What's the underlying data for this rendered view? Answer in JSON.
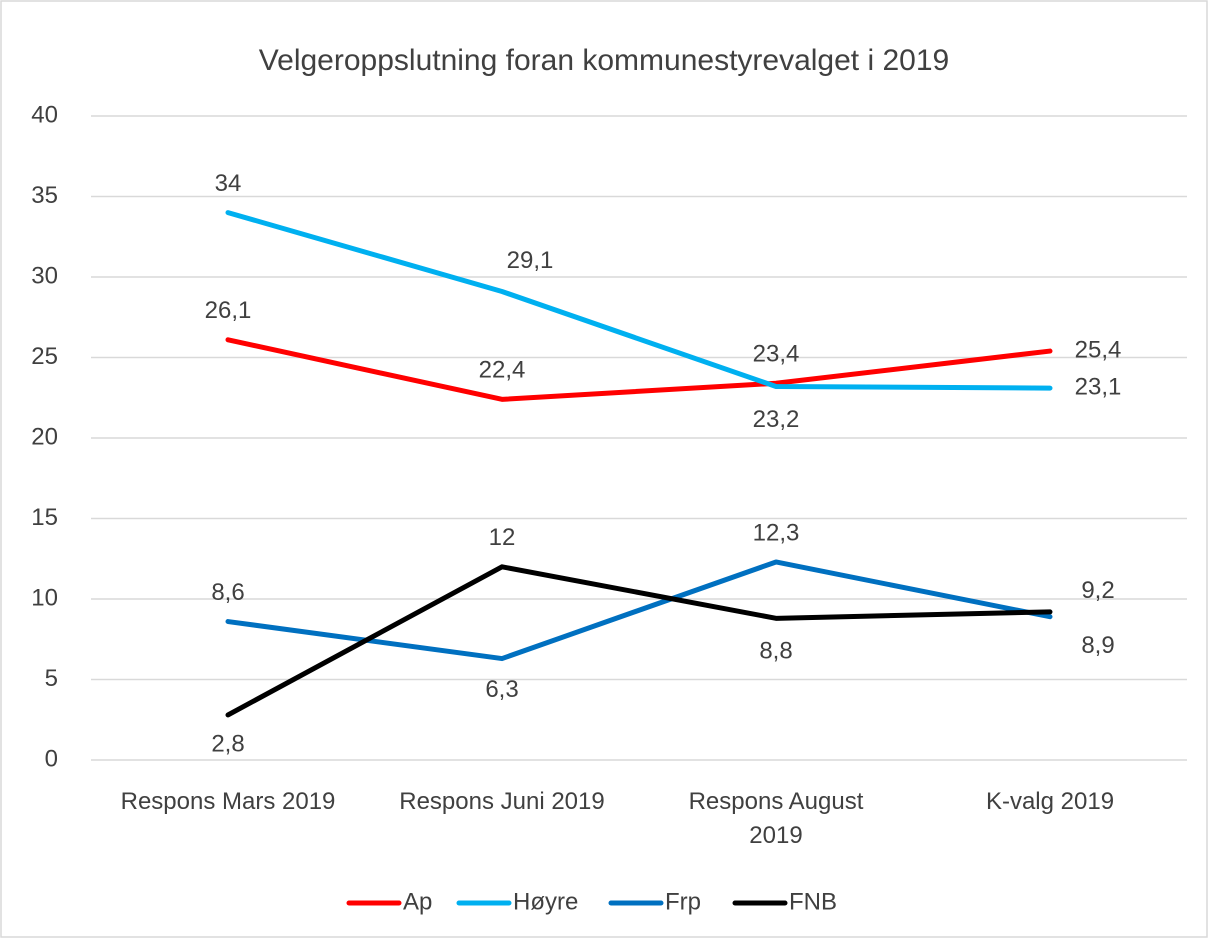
{
  "chart_data": {
    "type": "line",
    "title": "Velgeroppslutning foran kommunestyrevalget i 2019",
    "categories": [
      "Respons Mars 2019",
      "Respons Juni 2019",
      "Respons August 2019",
      "K-valg 2019"
    ],
    "series": [
      {
        "name": "Ap",
        "color": "#ff0000",
        "values": [
          26.1,
          22.4,
          23.4,
          25.4
        ],
        "value_labels": [
          "26,1",
          "22,4",
          "23,4",
          "25,4"
        ]
      },
      {
        "name": "Høyre",
        "color": "#00b0f0",
        "values": [
          34,
          29.1,
          23.2,
          23.1
        ],
        "value_labels": [
          "34",
          "29,1",
          "23,2",
          "23,1"
        ]
      },
      {
        "name": "Frp",
        "color": "#0070c0",
        "values": [
          8.6,
          6.3,
          12.3,
          8.9
        ],
        "value_labels": [
          "8,6",
          "6,3",
          "12,3",
          "8,9"
        ]
      },
      {
        "name": "FNB",
        "color": "#000000",
        "values": [
          2.8,
          12,
          8.8,
          9.2
        ],
        "value_labels": [
          "2,8",
          "12",
          "8,8",
          "9,2"
        ]
      }
    ],
    "ylim": [
      0,
      40
    ],
    "yticks": [
      0,
      5,
      10,
      15,
      20,
      25,
      30,
      35,
      40
    ],
    "grid": true,
    "legend": "bottom"
  }
}
